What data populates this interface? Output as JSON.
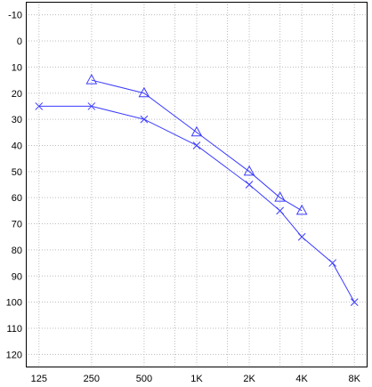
{
  "chart_data": {
    "type": "line",
    "x": [
      "125",
      "250",
      "500",
      "1K",
      "2K",
      "4K",
      "8K"
    ],
    "x_extra": [
      "750",
      "1.5K",
      "3K",
      "6K"
    ],
    "ylim": [
      -15,
      125
    ],
    "y_ticks": [
      "-10",
      "0",
      "10",
      "20",
      "30",
      "40",
      "50",
      "60",
      "70",
      "80",
      "90",
      "100",
      "110",
      "120"
    ],
    "y_inverted": true,
    "grid": "dotted",
    "colors": {
      "series": "#3b3bff",
      "grid": "#bdbdbd",
      "axis": "#000000"
    },
    "series": [
      {
        "marker": "triangle",
        "points": [
          {
            "x": "250",
            "y": 15
          },
          {
            "x": "500",
            "y": 20
          },
          {
            "x": "1K",
            "y": 35
          },
          {
            "x": "2K",
            "y": 50
          },
          {
            "x": "3K",
            "y": 60
          },
          {
            "x": "4K",
            "y": 65
          }
        ]
      },
      {
        "marker": "x",
        "points": [
          {
            "x": "125",
            "y": 25
          },
          {
            "x": "250",
            "y": 25
          },
          {
            "x": "500",
            "y": 30
          },
          {
            "x": "1K",
            "y": 40
          },
          {
            "x": "2K",
            "y": 55
          },
          {
            "x": "3K",
            "y": 65
          },
          {
            "x": "4K",
            "y": 75
          },
          {
            "x": "6K",
            "y": 85
          },
          {
            "x": "8K",
            "y": 100
          }
        ]
      }
    ]
  }
}
